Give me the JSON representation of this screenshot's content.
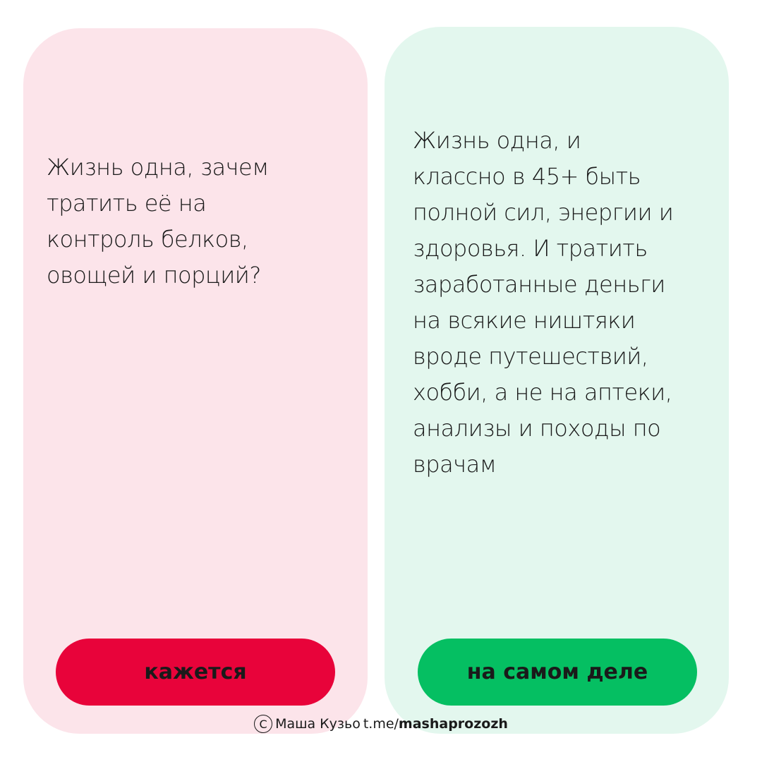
{
  "left_card": {
    "lines": [
      "Жизнь одна, зачем",
      "тратить её на",
      "контроль белков,",
      "овощей и порций?"
    ],
    "button_label": "кажется",
    "button_color": "#e8033a",
    "background": "#fce4ea"
  },
  "right_card": {
    "lines": [
      "Жизнь одна, и",
      "классно в 45+ быть",
      "полной сил, энергии и",
      "здоровья. И тратить",
      "заработанные деньги",
      "на всякие ништяки",
      "вроде путешествий,",
      "хобби, а не на аптеки,",
      "анализы и походы по",
      "врачам"
    ],
    "button_label": "на самом деле",
    "button_color": "#05bf62",
    "background": "#e3f7ee"
  },
  "footer": {
    "copyright_symbol": "C",
    "author": "Маша Кузьо",
    "link_prefix": "t.me/",
    "link_handle": "mashaprozozh"
  }
}
